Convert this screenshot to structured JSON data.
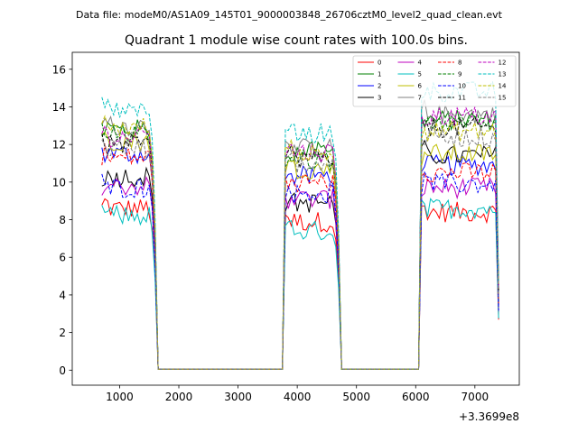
{
  "chart_data": {
    "type": "line",
    "supertitle": "Data file: modeM0/AS1A09_145T01_9000003848_26706cztM0_level2_quad_clean.evt",
    "title": "Quadrant 1 module wise count rates with 100.0s bins.",
    "xlabel": "",
    "ylabel": "",
    "x_offset_label": "+3.3699e8",
    "xlim": [
      200,
      7750
    ],
    "ylim": [
      -0.8,
      16.9
    ],
    "xticks": [
      1000,
      2000,
      3000,
      4000,
      5000,
      6000,
      7000
    ],
    "yticks": [
      0,
      2,
      4,
      6,
      8,
      10,
      12,
      14,
      16
    ],
    "grid": false,
    "legend_position": "top-right",
    "segments": [
      {
        "start": 700,
        "end": 1600
      },
      {
        "start": 3800,
        "end": 4700
      },
      {
        "start": 6100,
        "end": 7400
      }
    ],
    "gap_level": 0.05,
    "x_step": 50,
    "series": [
      {
        "name": "0",
        "color": "#ff0000",
        "dash": "solid",
        "levels": [
          8.6,
          7.9,
          8.4
        ]
      },
      {
        "name": "1",
        "color": "#008000",
        "dash": "solid",
        "levels": [
          12.8,
          11.6,
          13.3
        ]
      },
      {
        "name": "2",
        "color": "#0000ff",
        "dash": "solid",
        "levels": [
          11.5,
          10.3,
          10.9
        ]
      },
      {
        "name": "3",
        "color": "#000000",
        "dash": "solid",
        "levels": [
          10.3,
          8.9,
          11.4
        ]
      },
      {
        "name": "4",
        "color": "#bf00bf",
        "dash": "solid",
        "levels": [
          9.8,
          9.1,
          9.7
        ]
      },
      {
        "name": "5",
        "color": "#00bfbf",
        "dash": "solid",
        "levels": [
          8.2,
          7.4,
          8.6
        ]
      },
      {
        "name": "6",
        "color": "#bfbf00",
        "dash": "solid",
        "levels": [
          12.2,
          10.7,
          11.5
        ]
      },
      {
        "name": "7",
        "color": "#808080",
        "dash": "solid",
        "levels": [
          13.0,
          11.8,
          13.6
        ]
      },
      {
        "name": "8",
        "color": "#ff0000",
        "dash": "dashed",
        "levels": [
          11.3,
          10.0,
          10.5
        ]
      },
      {
        "name": "9",
        "color": "#008000",
        "dash": "dashed",
        "levels": [
          12.5,
          11.2,
          13.2
        ]
      },
      {
        "name": "10",
        "color": "#0000ff",
        "dash": "dashed",
        "levels": [
          9.7,
          9.4,
          9.9
        ]
      },
      {
        "name": "11",
        "color": "#000000",
        "dash": "dashed",
        "levels": [
          12.0,
          11.3,
          12.9
        ]
      },
      {
        "name": "12",
        "color": "#bf00bf",
        "dash": "dashed",
        "levels": [
          12.4,
          11.6,
          13.5
        ]
      },
      {
        "name": "13",
        "color": "#00bfbf",
        "dash": "dashed",
        "levels": [
          13.8,
          12.6,
          14.8
        ]
      },
      {
        "name": "14",
        "color": "#bfbf00",
        "dash": "dashed",
        "levels": [
          12.9,
          11.5,
          12.7
        ]
      },
      {
        "name": "15",
        "color": "#808080",
        "dash": "dashed",
        "levels": [
          11.8,
          11.0,
          12.4
        ]
      }
    ]
  }
}
